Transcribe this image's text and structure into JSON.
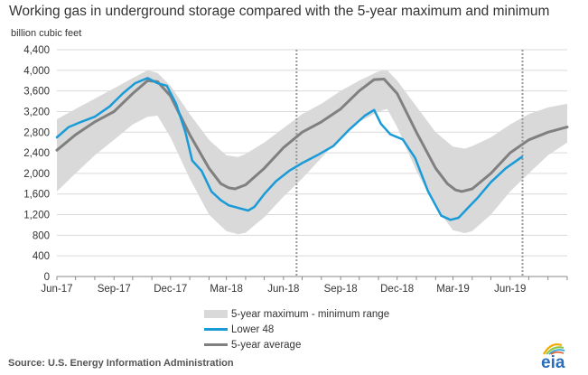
{
  "chart_data": {
    "type": "area",
    "title": "Working gas in underground  storage compared with the 5-year maximum and minimum",
    "ylabel": "billion cubic feet",
    "xlabel": "",
    "ylim": [
      0,
      4400
    ],
    "yticks": [
      0,
      400,
      800,
      1200,
      1600,
      2000,
      2400,
      2800,
      3200,
      3600,
      4000,
      4400
    ],
    "xlim": [
      "2017-06-01",
      "2019-09-01"
    ],
    "xtick_labels": [
      {
        "date": "2017-06-01",
        "label": "Jun-17"
      },
      {
        "date": "2017-09-01",
        "label": "Sep-17"
      },
      {
        "date": "2017-12-01",
        "label": "Dec-17"
      },
      {
        "date": "2018-03-01",
        "label": "Mar-18"
      },
      {
        "date": "2018-06-01",
        "label": "Jun-18"
      },
      {
        "date": "2018-09-01",
        "label": "Sep-18"
      },
      {
        "date": "2018-12-01",
        "label": "Dec-18"
      },
      {
        "date": "2019-03-01",
        "label": "Mar-19"
      },
      {
        "date": "2019-06-01",
        "label": "Jun-19"
      }
    ],
    "grid": "horizontal",
    "vertical_markers": [
      "2018-06-22",
      "2019-06-21"
    ],
    "legend_position": "bottom",
    "colors": {
      "range": "#d9d9d9",
      "lower48": "#1a9bd7",
      "avg": "#808080",
      "marker": "#999999"
    },
    "series": [
      {
        "name": "5-year maximum - minimum range",
        "kind": "band",
        "x": [
          "2017-06-01",
          "2017-07-01",
          "2017-08-01",
          "2017-09-01",
          "2017-10-01",
          "2017-10-25",
          "2017-11-10",
          "2017-12-01",
          "2018-01-01",
          "2018-02-01",
          "2018-03-01",
          "2018-03-20",
          "2018-04-01",
          "2018-05-01",
          "2018-06-01",
          "2018-07-01",
          "2018-08-01",
          "2018-09-01",
          "2018-10-01",
          "2018-11-01",
          "2018-11-15",
          "2018-12-01",
          "2019-01-01",
          "2019-02-01",
          "2019-03-01",
          "2019-03-20",
          "2019-04-01",
          "2019-05-01",
          "2019-06-01",
          "2019-07-01",
          "2019-08-01",
          "2019-09-01"
        ],
        "upper": [
          3050,
          3250,
          3450,
          3650,
          3850,
          4000,
          3950,
          3700,
          3150,
          2650,
          2350,
          2320,
          2380,
          2600,
          2880,
          3150,
          3350,
          3600,
          3800,
          3980,
          4000,
          3800,
          3300,
          2800,
          2520,
          2480,
          2530,
          2700,
          2950,
          3150,
          3280,
          3350
        ],
        "lower": [
          1650,
          2000,
          2350,
          2650,
          2950,
          3100,
          3120,
          2700,
          1900,
          1200,
          880,
          820,
          850,
          1150,
          1550,
          1900,
          2300,
          2700,
          3000,
          3200,
          3250,
          2900,
          2050,
          1350,
          900,
          840,
          880,
          1200,
          1650,
          2000,
          2350,
          2600
        ]
      },
      {
        "name": "Lower 48",
        "kind": "line",
        "x": [
          "2017-06-01",
          "2017-06-20",
          "2017-07-10",
          "2017-08-01",
          "2017-08-25",
          "2017-09-15",
          "2017-10-05",
          "2017-10-25",
          "2017-11-10",
          "2017-11-25",
          "2017-12-10",
          "2017-12-25",
          "2018-01-05",
          "2018-01-20",
          "2018-02-05",
          "2018-02-20",
          "2018-03-05",
          "2018-03-20",
          "2018-04-05",
          "2018-04-15",
          "2018-05-01",
          "2018-05-20",
          "2018-06-10",
          "2018-07-01",
          "2018-07-25",
          "2018-08-20",
          "2018-09-15",
          "2018-10-10",
          "2018-10-25",
          "2018-11-05",
          "2018-11-20",
          "2018-12-10",
          "2018-12-30",
          "2019-01-20",
          "2019-02-10",
          "2019-02-25",
          "2019-03-10",
          "2019-03-25",
          "2019-04-10",
          "2019-05-01",
          "2019-05-25",
          "2019-06-20"
        ],
        "y": [
          2700,
          2900,
          3000,
          3100,
          3300,
          3550,
          3750,
          3850,
          3750,
          3700,
          3350,
          2800,
          2250,
          2050,
          1650,
          1480,
          1380,
          1330,
          1280,
          1350,
          1600,
          1850,
          2050,
          2200,
          2350,
          2530,
          2850,
          3120,
          3230,
          2960,
          2760,
          2660,
          2300,
          1650,
          1180,
          1100,
          1140,
          1330,
          1530,
          1830,
          2100,
          2320
        ]
      },
      {
        "name": "5-year average",
        "kind": "line",
        "x": [
          "2017-06-01",
          "2017-07-01",
          "2017-08-01",
          "2017-09-01",
          "2017-10-01",
          "2017-10-25",
          "2017-11-10",
          "2017-12-01",
          "2018-01-01",
          "2018-02-01",
          "2018-02-20",
          "2018-03-05",
          "2018-03-15",
          "2018-04-01",
          "2018-05-01",
          "2018-06-01",
          "2018-07-01",
          "2018-08-01",
          "2018-09-01",
          "2018-10-01",
          "2018-10-25",
          "2018-11-10",
          "2018-12-01",
          "2019-01-01",
          "2019-02-01",
          "2019-02-20",
          "2019-03-05",
          "2019-03-15",
          "2019-04-01",
          "2019-05-01",
          "2019-06-01",
          "2019-07-01",
          "2019-08-01",
          "2019-09-01"
        ],
        "y": [
          2450,
          2750,
          3000,
          3200,
          3550,
          3800,
          3780,
          3500,
          2750,
          2100,
          1800,
          1720,
          1700,
          1780,
          2100,
          2500,
          2800,
          3000,
          3250,
          3600,
          3820,
          3830,
          3550,
          2800,
          2100,
          1800,
          1680,
          1650,
          1700,
          2000,
          2400,
          2650,
          2800,
          2900
        ]
      }
    ]
  },
  "legend": {
    "items": [
      {
        "label": "5-year maximum - minimum range"
      },
      {
        "label": "Lower 48"
      },
      {
        "label": "5-year average"
      }
    ]
  },
  "source": "Source:  U.S. Energy Information Administration",
  "logo": {
    "text": "eia",
    "colors": [
      "#f2a900",
      "#2ea3e0",
      "#8dc63f",
      "#e05a2b"
    ]
  }
}
